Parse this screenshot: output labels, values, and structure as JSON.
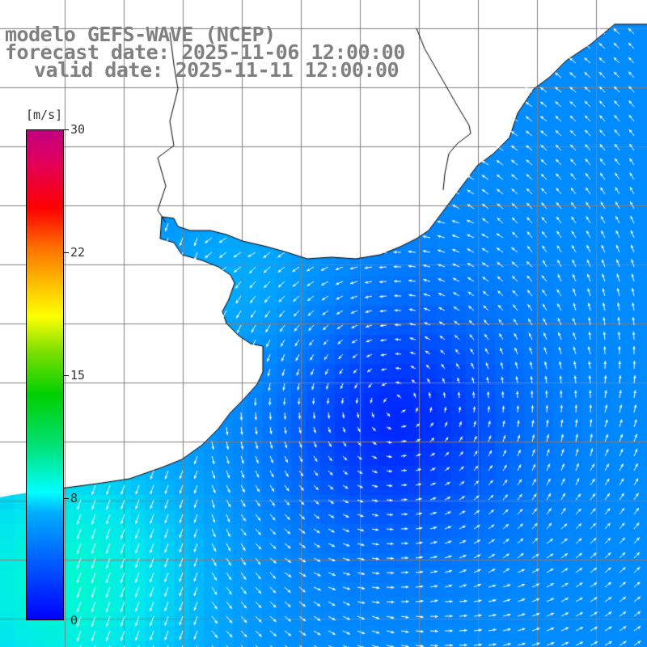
{
  "title": {
    "line1": "modelo GEFS-WAVE (NCEP)",
    "line2": "forecast date: 2025-11-06 12:00:00",
    "line3": "valid date: 2025-11-11 12:00:00"
  },
  "colorbar": {
    "unit": "[m/s]",
    "ticks": [
      "30",
      "22",
      "15",
      "8",
      "0"
    ],
    "min": 0,
    "max": 30,
    "colors": [
      "#0000ff",
      "#00b0ff",
      "#00ffff",
      "#00d000",
      "#ffff00",
      "#ff7000",
      "#ff0000",
      "#c0007f"
    ]
  },
  "colors": {
    "land": "#ffffff",
    "coastline": "#000000",
    "grid": "#808080",
    "arrow": "#ffffff",
    "title": "#808080"
  }
}
